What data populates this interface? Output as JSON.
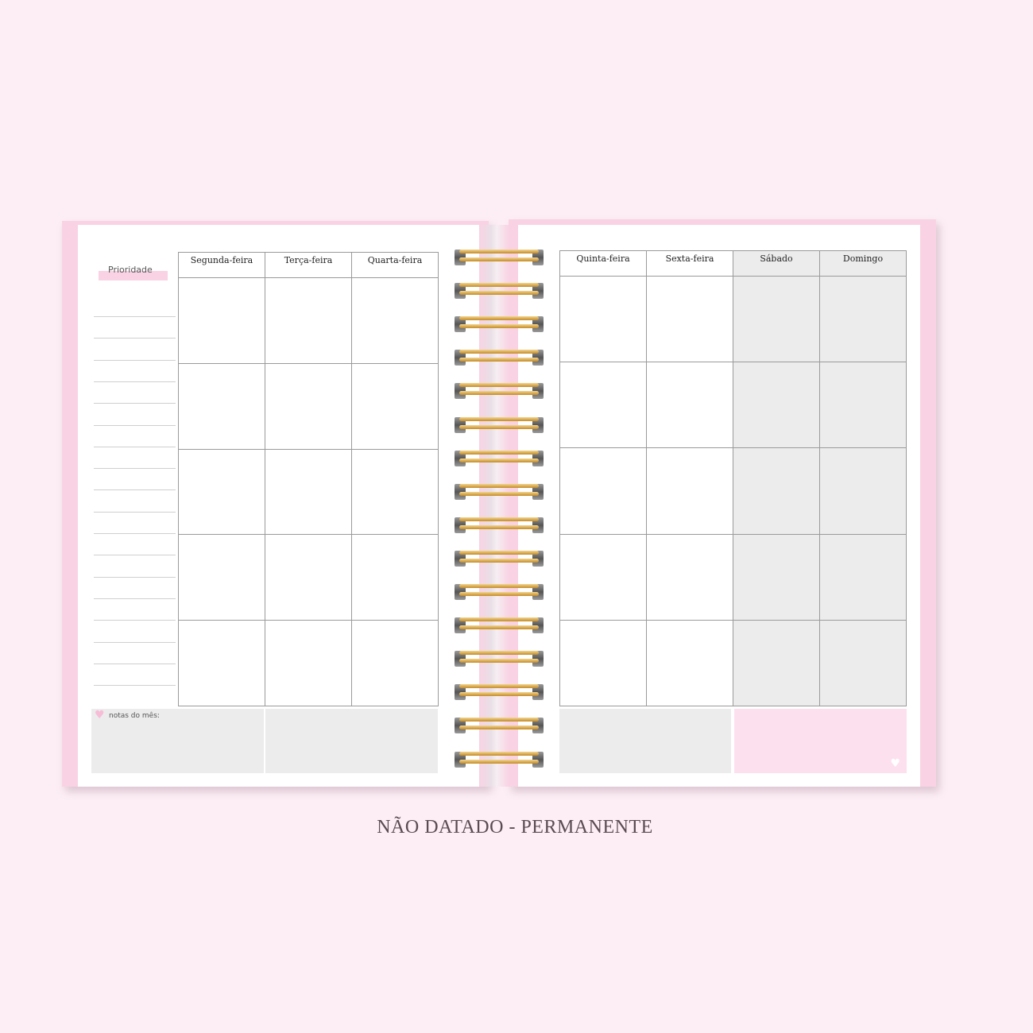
{
  "left_page": {
    "priority_label": "Prioridade",
    "days": [
      "Segunda-feira",
      "Terça-feira",
      "Quarta-feira"
    ],
    "notes_label": "notas do mês:"
  },
  "right_page": {
    "days": [
      "Quinta-feira",
      "Sexta-feira",
      "Sábado",
      "Domingo"
    ]
  },
  "caption": "NÃO DATADO - PERMANENTE",
  "colors": {
    "accent_pink": "#f9d3e3",
    "weekend_gray": "#ececec",
    "ring_gold": "#d9a545"
  },
  "icons": {
    "notes": "heart-icon",
    "corner": "heart-icon"
  }
}
